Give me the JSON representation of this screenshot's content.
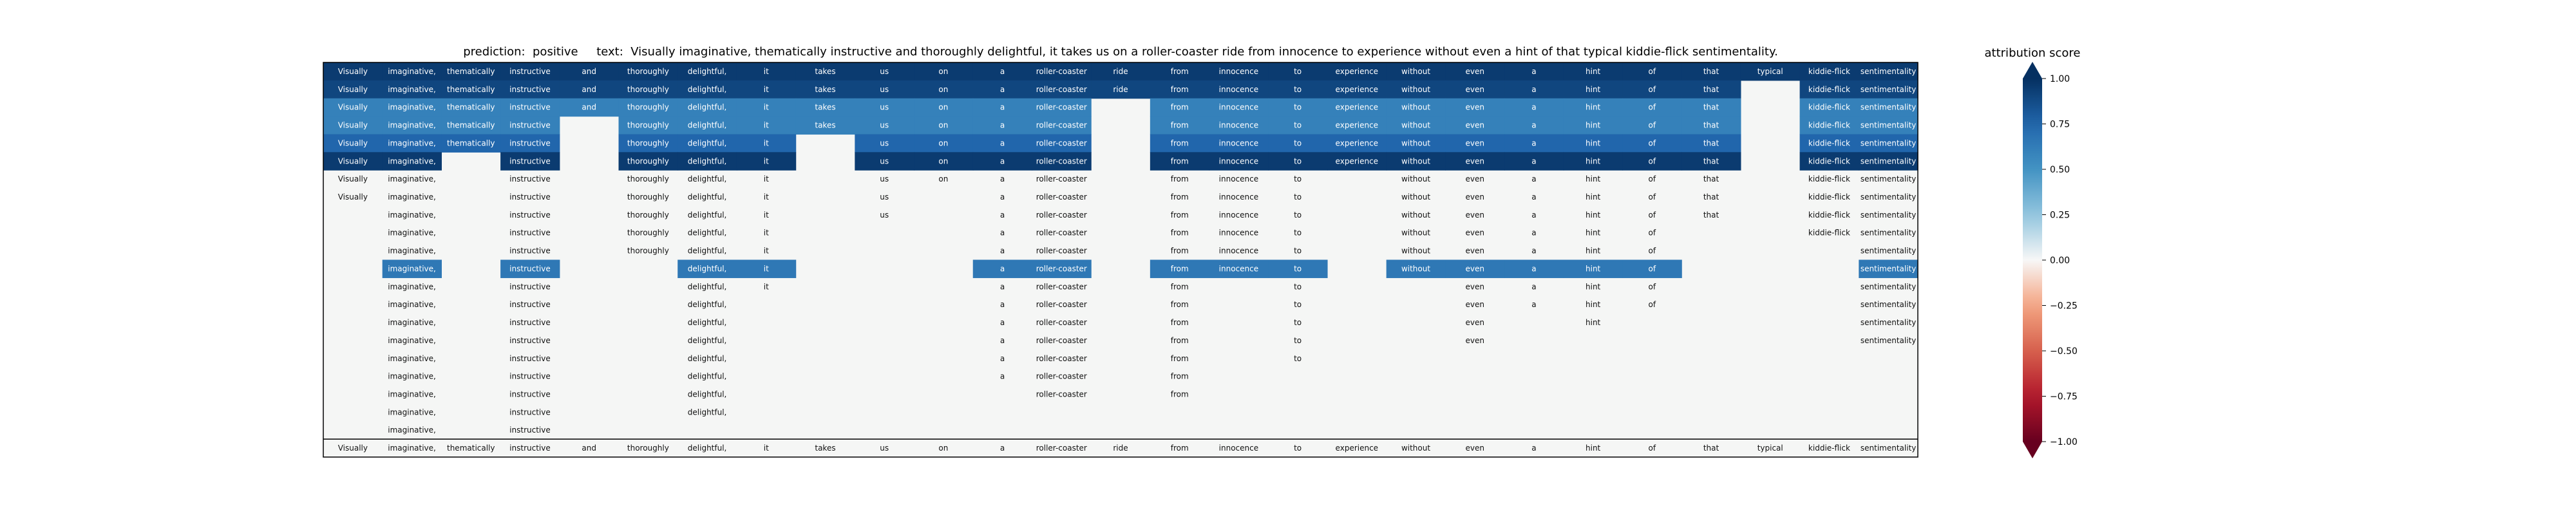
{
  "title_text": "prediction:  positive     text:  Visually imaginative, thematically instructive and thoroughly delightful, it takes us on a roller-coaster ride from innocence to experience without even a hint of that typical kiddie-flick sentimentality.",
  "chart_data": {
    "type": "heatmap",
    "prediction_label": "prediction:",
    "prediction": "positive",
    "text_label": "text:",
    "text": "Visually imaginative, thematically instructive and thoroughly delightful, it takes us on a roller-coaster ride from innocence to experience without even a hint of that typical kiddie-flick sentimentality.",
    "tokens": [
      "Visually",
      "imaginative,",
      "thematically",
      "instructive",
      "and",
      "thoroughly",
      "delightful,",
      "it",
      "takes",
      "us",
      "on",
      "a",
      "roller-coaster",
      "ride",
      "from",
      "innocence",
      "to",
      "experience",
      "without",
      "even",
      "a",
      "hint",
      "of",
      "that",
      "typical",
      "kiddie-flick",
      "sentimentality"
    ],
    "rows_present": [
      [
        1,
        1,
        1,
        1,
        1,
        1,
        1,
        1,
        1,
        1,
        1,
        1,
        1,
        1,
        1,
        1,
        1,
        1,
        1,
        1,
        1,
        1,
        1,
        1,
        1,
        1,
        1
      ],
      [
        1,
        1,
        1,
        1,
        1,
        1,
        1,
        1,
        1,
        1,
        1,
        1,
        1,
        1,
        1,
        1,
        1,
        1,
        1,
        1,
        1,
        1,
        1,
        1,
        0,
        1,
        1
      ],
      [
        1,
        1,
        1,
        1,
        1,
        1,
        1,
        1,
        1,
        1,
        1,
        1,
        1,
        0,
        1,
        1,
        1,
        1,
        1,
        1,
        1,
        1,
        1,
        1,
        0,
        1,
        1
      ],
      [
        1,
        1,
        1,
        1,
        0,
        1,
        1,
        1,
        1,
        1,
        1,
        1,
        1,
        0,
        1,
        1,
        1,
        1,
        1,
        1,
        1,
        1,
        1,
        1,
        0,
        1,
        1
      ],
      [
        1,
        1,
        1,
        1,
        0,
        1,
        1,
        1,
        0,
        1,
        1,
        1,
        1,
        0,
        1,
        1,
        1,
        1,
        1,
        1,
        1,
        1,
        1,
        1,
        0,
        1,
        1
      ],
      [
        1,
        1,
        0,
        1,
        0,
        1,
        1,
        1,
        0,
        1,
        1,
        1,
        1,
        0,
        1,
        1,
        1,
        1,
        1,
        1,
        1,
        1,
        1,
        1,
        0,
        1,
        1
      ],
      [
        1,
        1,
        0,
        1,
        0,
        1,
        1,
        1,
        0,
        1,
        1,
        1,
        1,
        0,
        1,
        1,
        1,
        0,
        1,
        1,
        1,
        1,
        1,
        1,
        0,
        1,
        1
      ],
      [
        1,
        1,
        0,
        1,
        0,
        1,
        1,
        1,
        0,
        1,
        0,
        1,
        1,
        0,
        1,
        1,
        1,
        0,
        1,
        1,
        1,
        1,
        1,
        1,
        0,
        1,
        1
      ],
      [
        0,
        1,
        0,
        1,
        0,
        1,
        1,
        1,
        0,
        1,
        0,
        1,
        1,
        0,
        1,
        1,
        1,
        0,
        1,
        1,
        1,
        1,
        1,
        1,
        0,
        1,
        1
      ],
      [
        0,
        1,
        0,
        1,
        0,
        1,
        1,
        1,
        0,
        0,
        0,
        1,
        1,
        0,
        1,
        1,
        1,
        0,
        1,
        1,
        1,
        1,
        1,
        0,
        0,
        1,
        1
      ],
      [
        0,
        1,
        0,
        1,
        0,
        1,
        1,
        1,
        0,
        0,
        0,
        1,
        1,
        0,
        1,
        1,
        1,
        0,
        1,
        1,
        1,
        1,
        1,
        0,
        0,
        0,
        1
      ],
      [
        0,
        1,
        0,
        1,
        0,
        0,
        1,
        1,
        0,
        0,
        0,
        1,
        1,
        0,
        1,
        1,
        1,
        0,
        1,
        1,
        1,
        1,
        1,
        0,
        0,
        0,
        1
      ],
      [
        0,
        1,
        0,
        1,
        0,
        0,
        1,
        1,
        0,
        0,
        0,
        1,
        1,
        0,
        1,
        0,
        1,
        0,
        0,
        1,
        1,
        1,
        1,
        0,
        0,
        0,
        1
      ],
      [
        0,
        1,
        0,
        1,
        0,
        0,
        1,
        0,
        0,
        0,
        0,
        1,
        1,
        0,
        1,
        0,
        1,
        0,
        0,
        1,
        1,
        1,
        1,
        0,
        0,
        0,
        1
      ],
      [
        0,
        1,
        0,
        1,
        0,
        0,
        1,
        0,
        0,
        0,
        0,
        1,
        1,
        0,
        1,
        0,
        1,
        0,
        0,
        1,
        0,
        1,
        0,
        0,
        0,
        0,
        1
      ],
      [
        0,
        1,
        0,
        1,
        0,
        0,
        1,
        0,
        0,
        0,
        0,
        1,
        1,
        0,
        1,
        0,
        1,
        0,
        0,
        1,
        0,
        0,
        0,
        0,
        0,
        0,
        1
      ],
      [
        0,
        1,
        0,
        1,
        0,
        0,
        1,
        0,
        0,
        0,
        0,
        1,
        1,
        0,
        1,
        0,
        1,
        0,
        0,
        0,
        0,
        0,
        0,
        0,
        0,
        0,
        0
      ],
      [
        0,
        1,
        0,
        1,
        0,
        0,
        1,
        0,
        0,
        0,
        0,
        1,
        1,
        0,
        1,
        0,
        0,
        0,
        0,
        0,
        0,
        0,
        0,
        0,
        0,
        0,
        0
      ],
      [
        0,
        1,
        0,
        1,
        0,
        0,
        1,
        0,
        0,
        0,
        0,
        0,
        1,
        0,
        1,
        0,
        0,
        0,
        0,
        0,
        0,
        0,
        0,
        0,
        0,
        0,
        0
      ],
      [
        0,
        1,
        0,
        1,
        0,
        0,
        1,
        0,
        0,
        0,
        0,
        0,
        0,
        0,
        0,
        0,
        0,
        0,
        0,
        0,
        0,
        0,
        0,
        0,
        0,
        0,
        0
      ],
      [
        0,
        1,
        0,
        1,
        0,
        0,
        0,
        0,
        0,
        0,
        0,
        0,
        0,
        0,
        0,
        0,
        0,
        0,
        0,
        0,
        0,
        0,
        0,
        0,
        0,
        0,
        0
      ]
    ],
    "attribution_rows": [
      {
        "row": 0,
        "value": 0.95
      },
      {
        "row": 1,
        "value": 0.9
      },
      {
        "row": 2,
        "value": 0.6
      },
      {
        "row": 3,
        "value": 0.6
      },
      {
        "row": 4,
        "value": 0.75
      },
      {
        "row": 5,
        "value": 0.95
      },
      {
        "row": 11,
        "value": 0.65
      }
    ],
    "bottom_row": "tokens",
    "colorbar": {
      "label": "attribution score",
      "ticks": [
        1.0,
        0.75,
        0.5,
        0.25,
        0.0,
        -0.25,
        -0.5,
        -0.75,
        -1.0
      ],
      "tick_labels": [
        "1.00",
        "0.75",
        "0.50",
        "0.25",
        "0.00",
        "−0.25",
        "−0.50",
        "−0.75",
        "−1.00"
      ],
      "range": [
        -1,
        1
      ],
      "colormap": "RdBu",
      "extend": "both"
    },
    "colors": {
      "background": "#f5f6f5",
      "strong_positive": "#0f4a83",
      "positive": "#2f72b0",
      "light_positive": "#dde9f3",
      "negative": "#b2182b",
      "border": "#000000"
    }
  }
}
